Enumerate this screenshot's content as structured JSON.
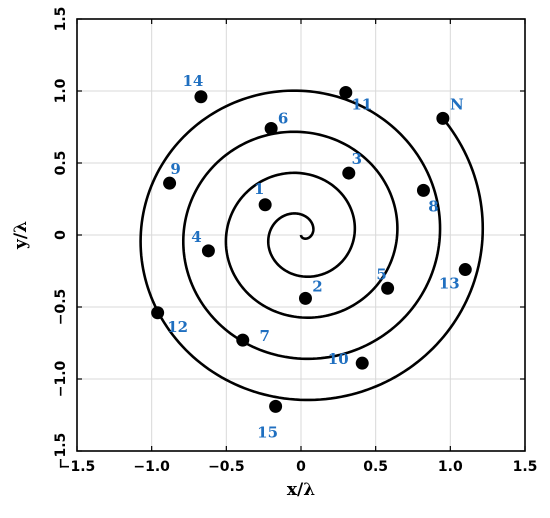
{
  "chart_data": {
    "type": "scatter",
    "title": "",
    "xlabel": "x/λ",
    "ylabel": "y/λ",
    "xlim": [
      -1.5,
      1.5
    ],
    "ylim": [
      -1.5,
      1.5
    ],
    "xticks": [
      "−1.5",
      "−1.0",
      "−0.5",
      "0",
      "0.5",
      "1.0",
      "1.5"
    ],
    "yticks": [
      "−1.5",
      "−1.0",
      "−0.5",
      "0",
      "0.5",
      "1.0",
      "1.5"
    ],
    "grid": true,
    "label_color": "#1f6fc0",
    "line_color": "#000000",
    "curve": {
      "form": "archimedean spiral",
      "max_turns": 4.5
    },
    "points": [
      {
        "label": "1",
        "x": -0.24,
        "y": 0.21
      },
      {
        "label": "2",
        "x": 0.03,
        "y": -0.44
      },
      {
        "label": "3",
        "x": 0.32,
        "y": 0.43
      },
      {
        "label": "4",
        "x": -0.62,
        "y": -0.11
      },
      {
        "label": "5",
        "x": 0.58,
        "y": -0.37
      },
      {
        "label": "6",
        "x": -0.2,
        "y": 0.74
      },
      {
        "label": "7",
        "x": -0.39,
        "y": -0.73
      },
      {
        "label": "8",
        "x": 0.82,
        "y": 0.31
      },
      {
        "label": "9",
        "x": -0.88,
        "y": 0.36
      },
      {
        "label": "10",
        "x": 0.41,
        "y": -0.89
      },
      {
        "label": "11",
        "x": 0.3,
        "y": 0.99
      },
      {
        "label": "12",
        "x": -0.96,
        "y": -0.54
      },
      {
        "label": "13",
        "x": 1.1,
        "y": -0.24
      },
      {
        "label": "14",
        "x": -0.67,
        "y": 0.96
      },
      {
        "label": "15",
        "x": -0.17,
        "y": -1.19
      },
      {
        "label": "N",
        "x": 0.95,
        "y": 0.81
      }
    ]
  }
}
